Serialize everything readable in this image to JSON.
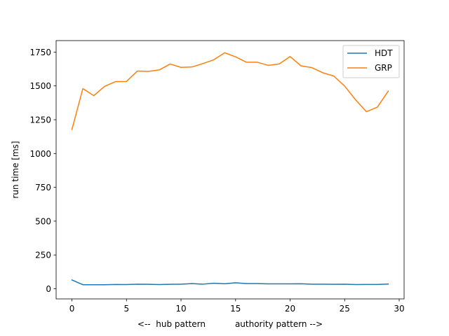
{
  "chart_data": {
    "type": "line",
    "xlabel": "<--  hub pattern           authority pattern -->",
    "ylabel": "run time [ms]",
    "xlim": [
      -1.45,
      30.45
    ],
    "ylim": [
      -75,
      1835
    ],
    "xticks": [
      0,
      5,
      10,
      15,
      20,
      25,
      30
    ],
    "yticks": [
      0,
      250,
      500,
      750,
      1000,
      1250,
      1500,
      1750
    ],
    "grid": false,
    "legend_position": "top-right",
    "x": [
      0,
      1,
      2,
      3,
      4,
      5,
      6,
      7,
      8,
      9,
      10,
      11,
      12,
      13,
      14,
      15,
      16,
      17,
      18,
      19,
      20,
      21,
      22,
      23,
      24,
      25,
      26,
      27,
      28,
      29
    ],
    "series": [
      {
        "name": "HDT",
        "color": "#1f77b4",
        "values": [
          65,
          30,
          30,
          30,
          32,
          31,
          34,
          33,
          31,
          33,
          34,
          38,
          34,
          41,
          37,
          44,
          38,
          38,
          36,
          36,
          36,
          37,
          34,
          34,
          33,
          34,
          31,
          32,
          32,
          35
        ]
      },
      {
        "name": "GRP",
        "color": "#ff7f0e",
        "values": [
          1178,
          1480,
          1428,
          1497,
          1532,
          1533,
          1610,
          1607,
          1618,
          1662,
          1637,
          1640,
          1665,
          1693,
          1745,
          1715,
          1675,
          1675,
          1652,
          1662,
          1717,
          1648,
          1635,
          1597,
          1573,
          1499,
          1397,
          1309,
          1343,
          1462
        ]
      }
    ]
  }
}
